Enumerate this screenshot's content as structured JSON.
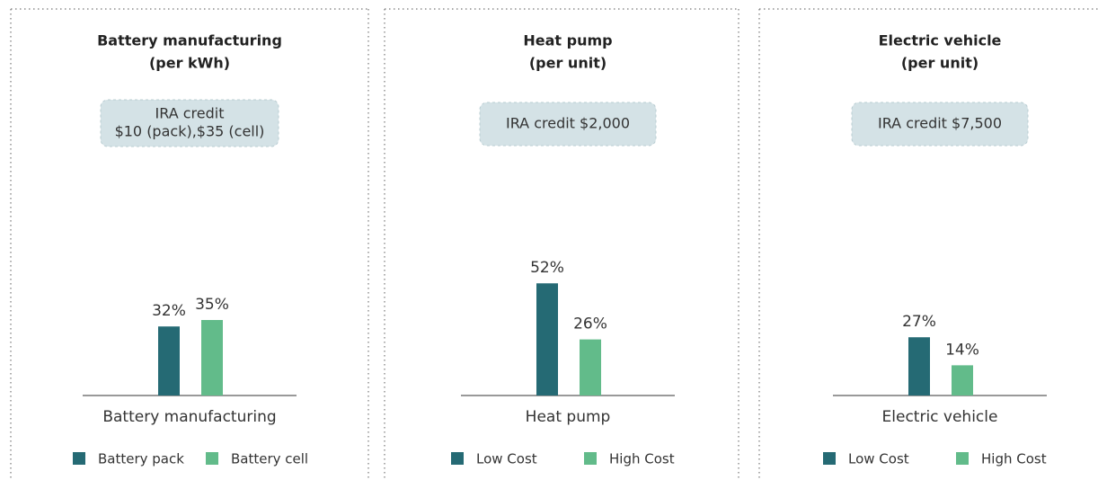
{
  "chart_data": [
    {
      "type": "bar",
      "title": "Battery manufacturing",
      "subtitle": "(per kWh)",
      "annotation": [
        "IRA credit",
        "$10 (pack),$35 (cell)"
      ],
      "categories": [
        "Battery manufacturing"
      ],
      "series": [
        {
          "name": "Battery pack",
          "color": "#256a74",
          "values": [
            32
          ],
          "value_labels": [
            "32%"
          ]
        },
        {
          "name": "Battery cell",
          "color": "#62bb8a",
          "values": [
            35
          ],
          "value_labels": [
            "35%"
          ]
        }
      ]
    },
    {
      "type": "bar",
      "title": "Heat pump",
      "subtitle": "(per unit)",
      "annotation": [
        "IRA credit $2,000"
      ],
      "categories": [
        "Heat pump"
      ],
      "series": [
        {
          "name": "Low Cost",
          "color": "#256a74",
          "values": [
            52
          ],
          "value_labels": [
            "52%"
          ]
        },
        {
          "name": "High Cost",
          "color": "#62bb8a",
          "values": [
            26
          ],
          "value_labels": [
            "26%"
          ]
        }
      ]
    },
    {
      "type": "bar",
      "title": "Electric vehicle",
      "subtitle": "(per unit)",
      "annotation": [
        "IRA credit $7,500"
      ],
      "categories": [
        "Electric vehicle"
      ],
      "series": [
        {
          "name": "Low Cost",
          "color": "#256a74",
          "values": [
            27
          ],
          "value_labels": [
            "27%"
          ]
        },
        {
          "name": "High Cost",
          "color": "#62bb8a",
          "values": [
            14
          ],
          "value_labels": [
            "14%"
          ]
        }
      ]
    }
  ]
}
